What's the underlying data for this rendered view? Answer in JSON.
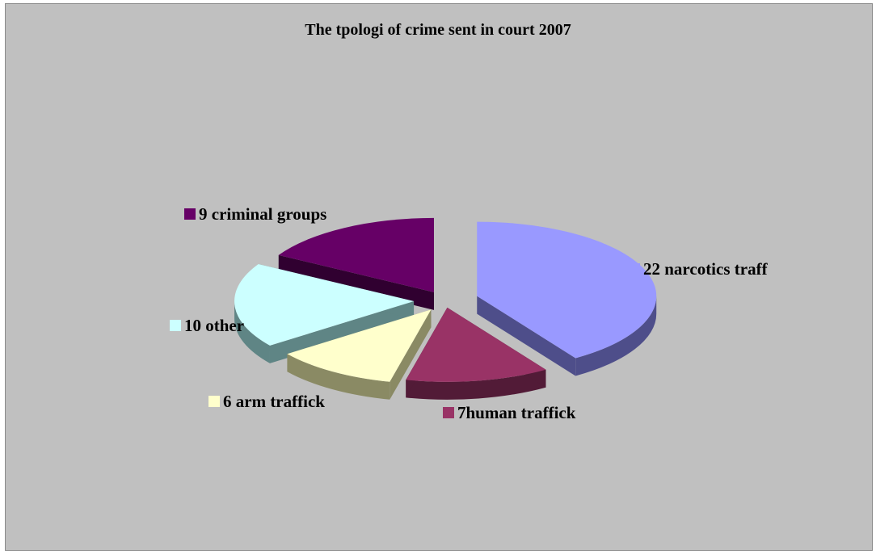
{
  "chart_data": {
    "type": "pie",
    "title": "The tpologi of crime sent in court 2007",
    "slices": [
      {
        "label": "22 narcotics traff",
        "value": 22,
        "color": "#9999ff",
        "side": "#4e4e8a"
      },
      {
        "label": "7human traffick",
        "value": 7,
        "color": "#993366",
        "side": "#521b37"
      },
      {
        "label": "6 arm traffick",
        "value": 6,
        "color": "#ffffcc",
        "side": "#8a8a64"
      },
      {
        "label": "10 other",
        "value": 10,
        "color": "#ccffff",
        "side": "#5f8585"
      },
      {
        "label": "9 criminal groups",
        "value": 9,
        "color": "#660066",
        "side": "#300030"
      }
    ],
    "exploded": true,
    "three_d": true
  }
}
